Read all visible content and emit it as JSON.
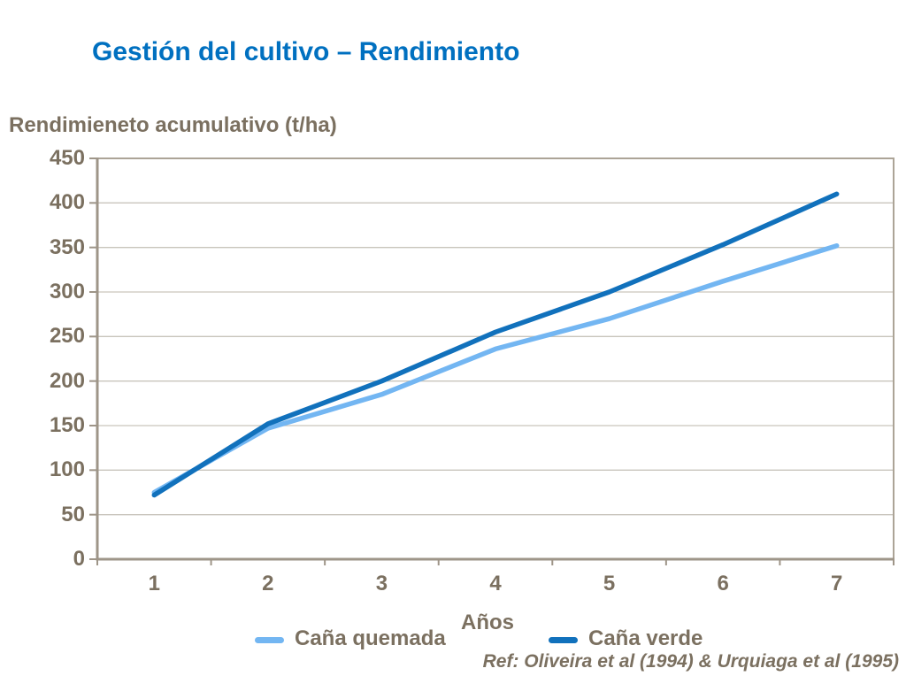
{
  "page": {
    "title": "Gestión del cultivo – Rendimiento",
    "reference": "Ref: Oliveira et al (1994) & Urquiaga et al (1995)"
  },
  "colors": {
    "title_blue": "#0070C0",
    "text_brown": "#7B7060",
    "axis": "#9E9588",
    "plot_border": "#ACA497",
    "gridline": "#C9C5BC",
    "background": "#FFFFFF",
    "quemada_line": "#73B6F2",
    "verde_line": "#1171BC"
  },
  "chart_data": {
    "type": "line",
    "title": "Rendimieneto acumulativo (t/ha)",
    "xlabel": "Años",
    "ylabel": "",
    "categories": [
      "1",
      "2",
      "3",
      "4",
      "5",
      "6",
      "7"
    ],
    "x": [
      1,
      2,
      3,
      4,
      5,
      6,
      7
    ],
    "series": [
      {
        "name": "Caña quemada",
        "color": "#73B6F2",
        "values": [
          75,
          147,
          185,
          236,
          270,
          312,
          352
        ]
      },
      {
        "name": "Caña verde",
        "color": "#1171BC",
        "values": [
          72,
          152,
          200,
          255,
          300,
          353,
          410
        ]
      }
    ],
    "ylim": [
      0,
      450
    ],
    "yticks": [
      0,
      50,
      100,
      150,
      200,
      250,
      300,
      350,
      400,
      450
    ],
    "grid": "horizontal",
    "legend_position": "bottom"
  }
}
